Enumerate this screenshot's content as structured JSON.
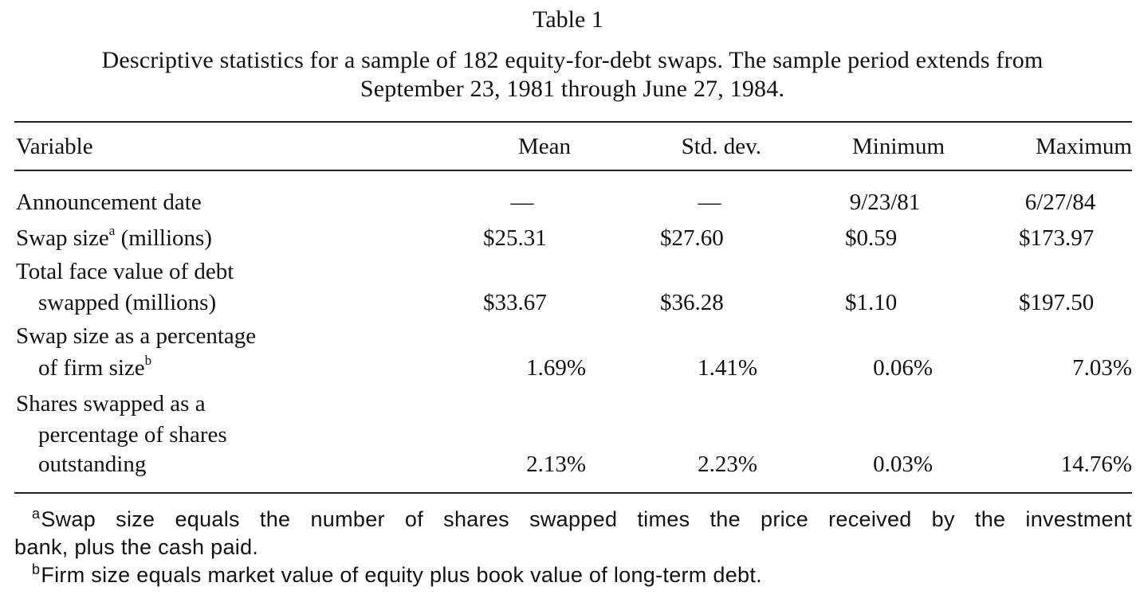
{
  "table": {
    "title": "Table 1",
    "caption_line1": "Descriptive statistics for a sample of 182 equity-for-debt swaps. The sample period extends from",
    "caption_line2": "September 23, 1981 through June 27, 1984.",
    "headers": {
      "variable": "Variable",
      "mean": "Mean",
      "std": "Std. dev.",
      "min": "Minimum",
      "max": "Maximum"
    },
    "rows": [
      {
        "label_lines": [
          "Announcement date"
        ],
        "mean": "—",
        "std": "—",
        "min": "9/23/81",
        "max": "6/27/84"
      },
      {
        "label_main": "Swap size",
        "label_sup": "a",
        "label_rest": " (millions)",
        "mean": "$25.31",
        "std": "$27.60",
        "min": "$0.59",
        "max": "$173.97"
      },
      {
        "label_lines": [
          "Total face value of debt",
          "swapped (millions)"
        ],
        "mean": "$33.67",
        "std": "$36.28",
        "min": "$1.10",
        "max": "$197.50"
      },
      {
        "label_line1": "Swap size as a percentage",
        "label_line2_main": "of firm size",
        "label_line2_sup": "b",
        "mean": "1.69%",
        "std": "1.41%",
        "min": "0.06%",
        "max": "7.03%"
      },
      {
        "label_lines": [
          "Shares swapped as a",
          "percentage of shares",
          "outstanding"
        ],
        "mean": "2.13%",
        "std": "2.23%",
        "min": "0.03%",
        "max": "14.76%"
      }
    ]
  },
  "footnotes": {
    "a_mark": "a",
    "a_text_line1": "Swap size equals the number of shares swapped times the price received by the investment",
    "a_text_line2": "bank, plus the cash paid.",
    "b_mark": "b",
    "b_text": "Firm size equals market value of equity plus book value of long-term debt."
  }
}
